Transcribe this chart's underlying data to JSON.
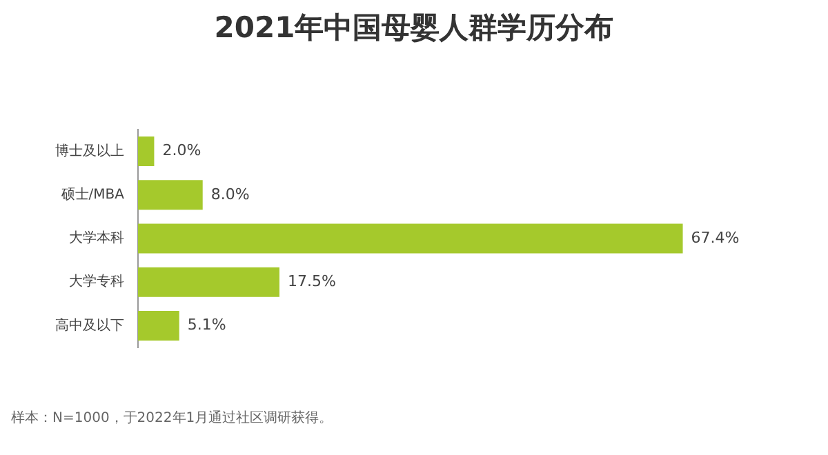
{
  "chart_data": {
    "type": "bar",
    "orientation": "horizontal",
    "title": "2021年中国母婴人群学历分布",
    "categories": [
      "博士及以上",
      "硕士/MBA",
      "大学本科",
      "大学专科",
      "高中及以下"
    ],
    "values": [
      2.0,
      8.0,
      67.4,
      17.5,
      5.1
    ],
    "value_labels": [
      "2.0%",
      "8.0%",
      "67.4%",
      "17.5%",
      "5.1%"
    ],
    "color": "#a5c92c",
    "annotations": [
      "样本：N=1000，于2022年1月通过社区调研获得。"
    ]
  }
}
